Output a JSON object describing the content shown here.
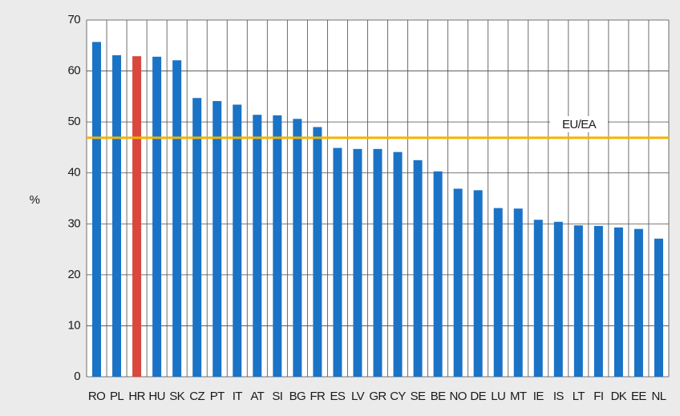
{
  "chart_data": {
    "type": "bar",
    "y_label": "%",
    "categories": [
      "RO",
      "PL",
      "HR",
      "HU",
      "SK",
      "CZ",
      "PT",
      "IT",
      "AT",
      "SI",
      "BG",
      "FR",
      "ES",
      "LV",
      "GR",
      "CY",
      "SE",
      "BE",
      "NO",
      "DE",
      "LU",
      "MT",
      "IE",
      "IS",
      "LT",
      "FI",
      "DK",
      "EE",
      "NL"
    ],
    "values": [
      65.7,
      63.1,
      62.9,
      62.8,
      62.1,
      54.7,
      54.1,
      53.4,
      51.4,
      51.3,
      50.6,
      49.0,
      44.9,
      44.7,
      44.7,
      44.1,
      42.5,
      40.3,
      36.9,
      36.6,
      33.1,
      33.0,
      30.8,
      30.4,
      29.7,
      29.6,
      29.3,
      29.0,
      27.1
    ],
    "colors": [
      "#1b73c6",
      "#1b73c6",
      "#d8483d",
      "#1b73c6",
      "#1b73c6",
      "#1b73c6",
      "#1b73c6",
      "#1b73c6",
      "#1b73c6",
      "#1b73c6",
      "#1b73c6",
      "#1b73c6",
      "#1b73c6",
      "#1b73c6",
      "#1b73c6",
      "#1b73c6",
      "#1b73c6",
      "#1b73c6",
      "#1b73c6",
      "#1b73c6",
      "#1b73c6",
      "#1b73c6",
      "#1b73c6",
      "#1b73c6",
      "#1b73c6",
      "#1b73c6",
      "#1b73c6",
      "#1b73c6",
      "#1b73c6"
    ],
    "reference_line": {
      "label": "EU/EA",
      "value": 46.9,
      "color": "#f3b400"
    },
    "ylim": [
      0,
      70
    ],
    "yticks": [
      0,
      10,
      20,
      30,
      40,
      50,
      60,
      70
    ],
    "grid": true
  }
}
